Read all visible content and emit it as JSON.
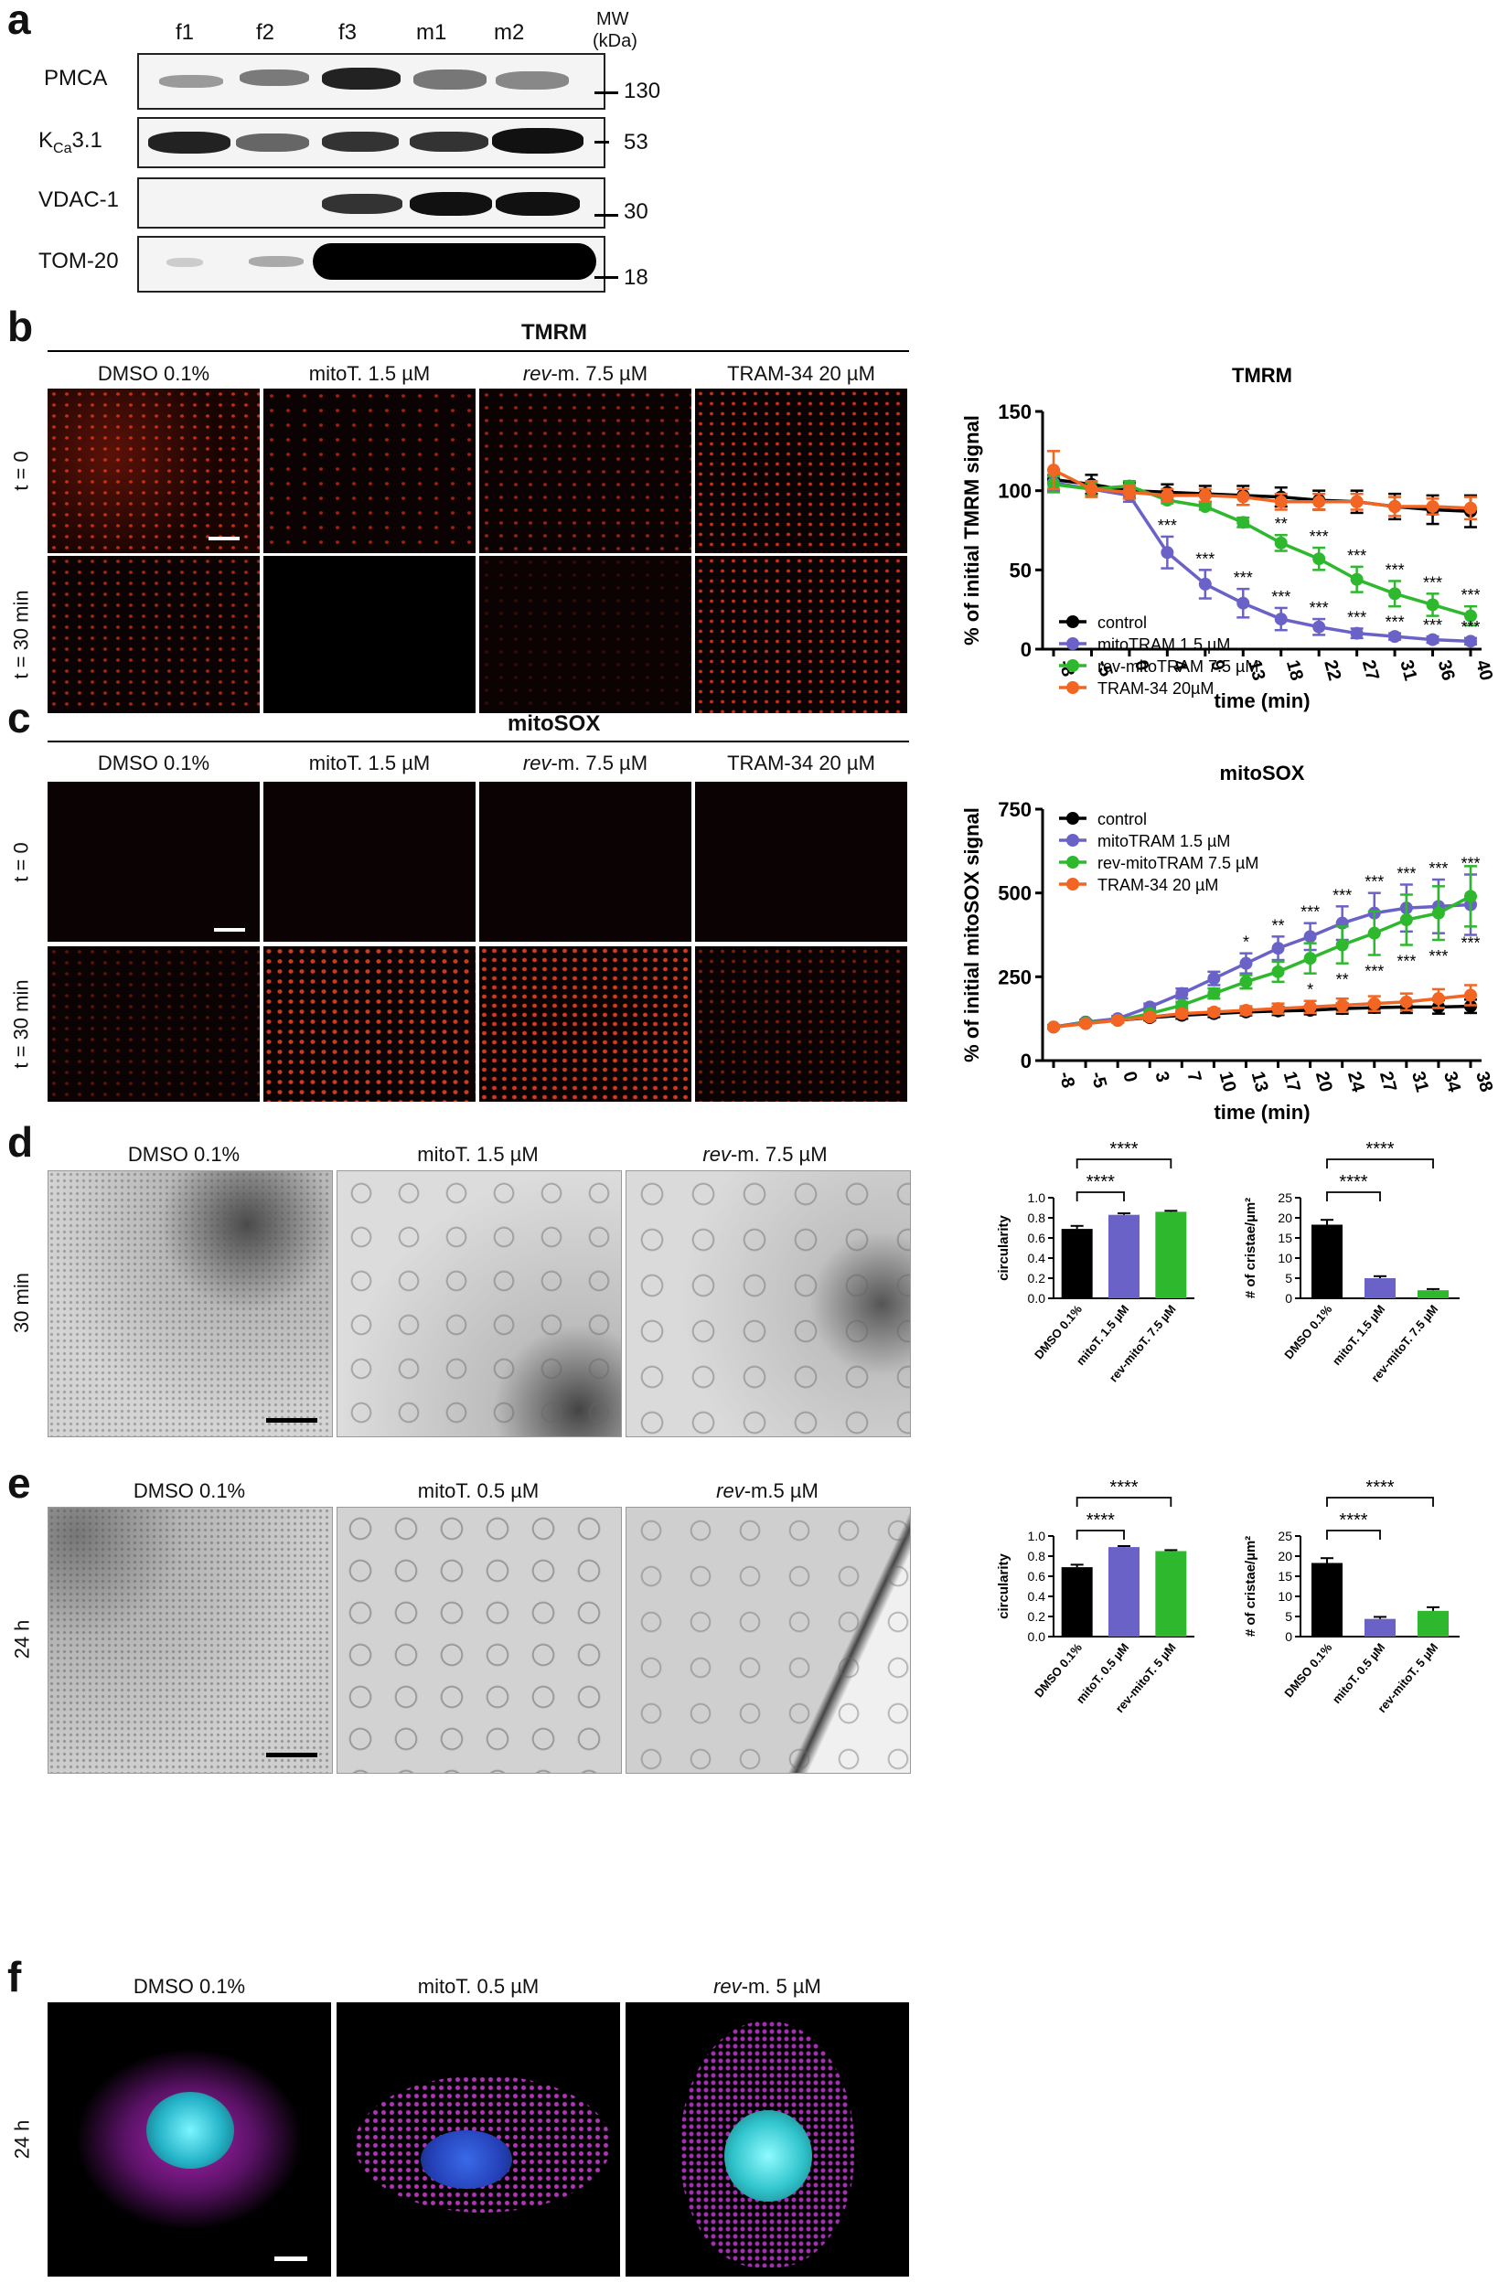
{
  "panels": {
    "a": "a",
    "b": "b",
    "c": "c",
    "d": "d",
    "e": "e",
    "f": "f"
  },
  "panel_a": {
    "lanes": [
      "f1",
      "f2",
      "f3",
      "m1",
      "m2"
    ],
    "mw_header_1": "MW",
    "mw_header_2": "(kDa)",
    "proteins": [
      "PMCA",
      "K",
      "Ca",
      "3.1",
      "VDAC-1",
      "TOM-20"
    ],
    "mw_values": [
      "130",
      "53",
      "30",
      "18"
    ]
  },
  "panel_b": {
    "title": "TMRM",
    "conditions": [
      "DMSO 0.1%",
      "mitoT. 1.5 µM",
      "rev",
      "-m. 7.5 µM",
      "TRAM-34 20 µM"
    ],
    "rows": [
      "t = 0",
      "t = 30 min"
    ]
  },
  "panel_c": {
    "title": "mitoSOX",
    "conditions": [
      "DMSO 0.1%",
      "mitoT. 1.5 µM",
      "rev",
      "-m. 7.5 µM",
      "TRAM-34 20 µM"
    ],
    "rows": [
      "t = 0",
      "t = 30 min"
    ]
  },
  "panel_d": {
    "conditions": [
      "DMSO 0.1%",
      "mitoT. 1.5 µM",
      "rev",
      "-m. 7.5 µM"
    ],
    "row": "30 min"
  },
  "panel_e": {
    "conditions": [
      "DMSO 0.1%",
      "mitoT. 0.5 µM",
      "rev",
      "-m.5 µM"
    ],
    "row": "24 h"
  },
  "panel_f": {
    "conditions": [
      "DMSO 0.1%",
      "mitoT. 0.5 µM",
      "rev",
      "-m. 5 µM"
    ],
    "row": "24 h"
  },
  "colors": {
    "control": "#000000",
    "mitoTRAM": "#6b62c8",
    "revmitoTRAM": "#2eb82e",
    "TRAM34": "#f26522"
  },
  "chart_data": [
    {
      "type": "line",
      "title": "TMRM",
      "xlabel": "time (min)",
      "ylabel": "% of initial TMRM signal",
      "categories": [
        "-8",
        "-5",
        "0",
        "4",
        "9",
        "13",
        "18",
        "22",
        "27",
        "31",
        "36",
        "40"
      ],
      "ylim": [
        0,
        150
      ],
      "yticks": [
        0,
        50,
        100,
        150
      ],
      "legend_position": "bottom-left",
      "series": [
        {
          "name": "control",
          "values": [
            107,
            104,
            100,
            99,
            98,
            97,
            96,
            94,
            93,
            90,
            88,
            87
          ],
          "err": [
            6,
            6,
            5,
            5,
            5,
            6,
            6,
            6,
            7,
            8,
            9,
            10
          ]
        },
        {
          "name": "mitoTRAM 1.5 µM",
          "values": [
            105,
            101,
            97,
            61,
            41,
            29,
            19,
            14,
            10,
            8,
            6,
            5
          ],
          "err": [
            5,
            4,
            4,
            10,
            9,
            9,
            7,
            5,
            3,
            2,
            2,
            2
          ]
        },
        {
          "name": "rev-mitoTRAM 7.5 µM",
          "values": [
            104,
            101,
            103,
            94,
            90,
            80,
            67,
            57,
            44,
            35,
            28,
            21
          ],
          "err": [
            5,
            4,
            3,
            2,
            2,
            3,
            5,
            7,
            8,
            8,
            7,
            6
          ]
        },
        {
          "name": "TRAM-34 20µM",
          "values": [
            113,
            101,
            99,
            97,
            97,
            96,
            93,
            93,
            93,
            90,
            90,
            89
          ],
          "err": [
            12,
            5,
            4,
            4,
            4,
            5,
            5,
            5,
            5,
            6,
            5,
            7
          ]
        }
      ],
      "annotations": [
        {
          "series": "mitoTRAM 1.5 µM",
          "labels": [
            "",
            "",
            "",
            "***",
            "***",
            "***",
            "***",
            "***",
            "***",
            "***",
            "***",
            "***"
          ]
        },
        {
          "series": "rev-mitoTRAM 7.5 µM",
          "labels": [
            "",
            "",
            "",
            "",
            "",
            "",
            "**",
            "***",
            "***",
            "***",
            "***",
            "***"
          ]
        }
      ]
    },
    {
      "type": "line",
      "title": "mitoSOX",
      "xlabel": "time (min)",
      "ylabel": "% of initial mitoSOX signal",
      "categories": [
        "-8",
        "-5",
        "0",
        "3",
        "7",
        "10",
        "13",
        "17",
        "20",
        "24",
        "27",
        "31",
        "34",
        "38"
      ],
      "ylim": [
        0,
        750
      ],
      "yticks": [
        0,
        250,
        500,
        750
      ],
      "legend_position": "top-left",
      "series": [
        {
          "name": "control",
          "values": [
            100,
            115,
            120,
            128,
            135,
            140,
            145,
            148,
            150,
            155,
            158,
            160,
            160,
            162
          ],
          "err": [
            5,
            6,
            6,
            8,
            10,
            10,
            10,
            12,
            12,
            15,
            15,
            18,
            20,
            20
          ]
        },
        {
          "name": "mitoTRAM 1.5 µM",
          "values": [
            100,
            115,
            125,
            160,
            200,
            245,
            290,
            335,
            370,
            410,
            440,
            455,
            460,
            465
          ],
          "err": [
            5,
            6,
            8,
            10,
            15,
            20,
            30,
            35,
            40,
            50,
            60,
            70,
            80,
            90
          ]
        },
        {
          "name": "rev-mitoTRAM 7.5 µM",
          "values": [
            100,
            112,
            120,
            140,
            165,
            200,
            235,
            265,
            305,
            345,
            380,
            420,
            440,
            490
          ],
          "err": [
            5,
            6,
            7,
            8,
            10,
            15,
            20,
            30,
            45,
            55,
            65,
            75,
            80,
            90
          ]
        },
        {
          "name": "TRAM-34 20 µM",
          "values": [
            100,
            110,
            120,
            130,
            140,
            145,
            150,
            155,
            160,
            165,
            170,
            175,
            185,
            195
          ],
          "err": [
            5,
            6,
            6,
            8,
            10,
            10,
            12,
            15,
            18,
            20,
            22,
            25,
            28,
            30
          ]
        }
      ],
      "annotations": [
        {
          "series": "mitoTRAM 1.5 µM",
          "position": "above",
          "labels": [
            "",
            "",
            "",
            "",
            "",
            "",
            "*",
            "**",
            "***",
            "***",
            "***",
            "***",
            "***",
            "***"
          ]
        },
        {
          "series": "rev-mitoTRAM 7.5 µM",
          "position": "below",
          "labels": [
            "",
            "",
            "",
            "",
            "",
            "",
            "",
            "",
            "*",
            "**",
            "***",
            "***",
            "***",
            "***"
          ]
        }
      ]
    },
    {
      "type": "bar",
      "xlabel": "",
      "ylabel": "circularity",
      "categories": [
        "DMSO 0.1%",
        "mitoT. 1.5 µM",
        "rev-mitoT. 7.5 µM"
      ],
      "values": [
        0.69,
        0.83,
        0.86
      ],
      "err": [
        0.03,
        0.015,
        0.01
      ],
      "ylim": [
        0,
        1.0
      ],
      "yticks": [
        "0.0",
        "0.2",
        "0.4",
        "0.6",
        "0.8",
        "1.0"
      ],
      "significance": [
        "****",
        "****"
      ]
    },
    {
      "type": "bar",
      "xlabel": "",
      "ylabel": "# of cristae/µm²",
      "categories": [
        "DMSO 0.1%",
        "mitoT. 1.5 µM",
        "rev-mitoT. 7.5 µM"
      ],
      "values": [
        18.3,
        5.0,
        2.0
      ],
      "err": [
        1.2,
        0.5,
        0.3
      ],
      "ylim": [
        0,
        25
      ],
      "yticks": [
        "0",
        "5",
        "10",
        "15",
        "20",
        "25"
      ],
      "significance": [
        "****",
        "****"
      ]
    },
    {
      "type": "bar",
      "xlabel": "",
      "ylabel": "circularity",
      "categories": [
        "DMSO 0.1%",
        "mitoT. 0.5 µM",
        "rev-mitoT. 5 µM"
      ],
      "values": [
        0.69,
        0.89,
        0.85
      ],
      "err": [
        0.025,
        0.01,
        0.01
      ],
      "ylim": [
        0,
        1.0
      ],
      "yticks": [
        "0.0",
        "0.2",
        "0.4",
        "0.6",
        "0.8",
        "1.0"
      ],
      "significance": [
        "****",
        "****"
      ]
    },
    {
      "type": "bar",
      "xlabel": "",
      "ylabel": "# of cristae/µm²",
      "categories": [
        "DMSO 0.1%",
        "mitoT. 0.5 µM",
        "rev-mitoT. 5 µM"
      ],
      "values": [
        18.3,
        4.4,
        6.4
      ],
      "err": [
        1.2,
        0.5,
        0.9
      ],
      "ylim": [
        0,
        25
      ],
      "yticks": [
        "0",
        "5",
        "10",
        "15",
        "20",
        "25"
      ],
      "significance": [
        "****",
        "****"
      ]
    }
  ]
}
